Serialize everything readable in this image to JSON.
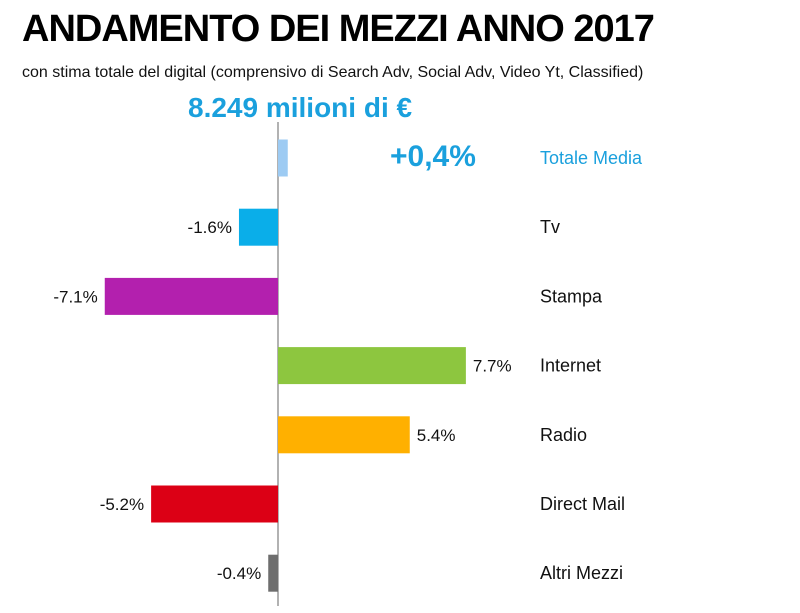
{
  "title": "ANDAMENTO DEI MEZZI ANNO 2017",
  "subtitle": "con stima totale del digital (comprensivo di Search Adv, Social Adv, Video Yt, Classified)",
  "total": {
    "value": "8.249 milioni di €",
    "change": "+0,4%"
  },
  "colors": {
    "total_label": "#1aa0dd",
    "axis": "#999999"
  },
  "chart_data": {
    "type": "bar",
    "orientation": "horizontal",
    "unit": "%",
    "xlim": [
      -8,
      8
    ],
    "grid": false,
    "categories": [
      "Totale Media",
      "Tv",
      "Stampa",
      "Internet",
      "Radio",
      "Direct Mail",
      "Altri Mezzi"
    ],
    "values": [
      0.4,
      -1.6,
      -7.1,
      7.7,
      5.4,
      -5.2,
      -0.4
    ],
    "value_labels": [
      "",
      "-1.6%",
      "-7.1%",
      "7.7%",
      "5.4%",
      "-5.2%",
      "-0.4%"
    ],
    "colors": [
      "#9dcbf3",
      "#0aaee9",
      "#b320ae",
      "#8dc63f",
      "#ffb000",
      "#dc0015",
      "#6e6e6e"
    ],
    "label_colors": [
      "#1aa0dd",
      "#111111",
      "#111111",
      "#111111",
      "#111111",
      "#111111",
      "#111111"
    ]
  }
}
